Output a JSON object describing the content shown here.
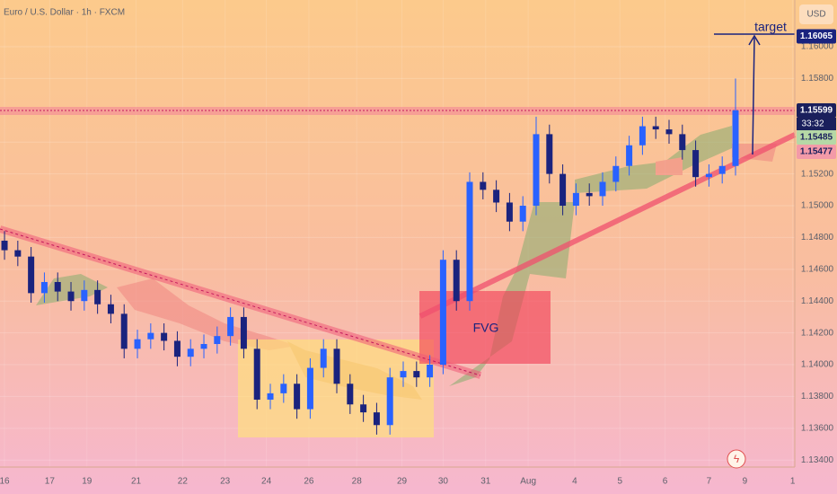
{
  "chart_data": {
    "type": "candlestick",
    "title": "Euro / U.S. Dollar · 1h · FXCM",
    "y_axis_label": "USD",
    "annotations": [
      "target",
      "FVG"
    ],
    "countdown": "33:32",
    "up_color": "#2962ff",
    "down_color": "#1a237e",
    "grid": true,
    "ylim": [
      1.13356,
      1.16294
    ],
    "yticks": [
      {
        "value": 1.134,
        "label": "1.13400"
      },
      {
        "value": 1.136,
        "label": "1.13600"
      },
      {
        "value": 1.138,
        "label": "1.13800"
      },
      {
        "value": 1.14,
        "label": "1.14000"
      },
      {
        "value": 1.142,
        "label": "1.14200"
      },
      {
        "value": 1.144,
        "label": "1.14400"
      },
      {
        "value": 1.146,
        "label": "1.14600"
      },
      {
        "value": 1.148,
        "label": "1.14800"
      },
      {
        "value": 1.15,
        "label": "1.15000"
      },
      {
        "value": 1.152,
        "label": "1.15200"
      },
      {
        "value": 1.154,
        "label": "1.15400"
      },
      {
        "value": 1.156,
        "label": "1.15600"
      },
      {
        "value": 1.158,
        "label": "1.15800"
      },
      {
        "value": 1.16,
        "label": "1.16000"
      }
    ],
    "xlim": [
      -0.34,
      59.46
    ],
    "xticks": [
      {
        "value": 0,
        "label": "16"
      },
      {
        "value": 3.4,
        "label": "17"
      },
      {
        "value": 6.2,
        "label": "19"
      },
      {
        "value": 9.9,
        "label": "21"
      },
      {
        "value": 13.4,
        "label": "22"
      },
      {
        "value": 16.6,
        "label": "23"
      },
      {
        "value": 19.7,
        "label": "24"
      },
      {
        "value": 22.9,
        "label": "26"
      },
      {
        "value": 26.5,
        "label": "28"
      },
      {
        "value": 29.9,
        "label": "29"
      },
      {
        "value": 33.0,
        "label": "30"
      },
      {
        "value": 36.2,
        "label": "31"
      },
      {
        "value": 39.4,
        "label": "Aug"
      },
      {
        "value": 42.9,
        "label": "4"
      },
      {
        "value": 46.3,
        "label": "5"
      },
      {
        "value": 49.7,
        "label": "6"
      },
      {
        "value": 53.0,
        "label": "7"
      },
      {
        "value": 55.7,
        "label": "9"
      },
      {
        "value": 59.3,
        "label": "1"
      }
    ],
    "price_labels": [
      {
        "value": 1.16065,
        "label": "1.16065",
        "color": "#1a237e",
        "text_color": "#ffffff"
      },
      {
        "value": 1.15599,
        "label": "1.15599",
        "color": "#1a1f5c",
        "text_color": "#ffffff"
      },
      {
        "value": 1.15485,
        "label": "1.15485",
        "color": "#b5d8a6",
        "text_color": "#1a1f5c"
      },
      {
        "value": 1.15477,
        "label": "1.15477",
        "color": "#f39aa8",
        "text_color": "#1a1f5c"
      }
    ],
    "ohlc": [
      [
        1.1478,
        1.1484,
        1.1466,
        1.1472
      ],
      [
        1.1472,
        1.1478,
        1.1462,
        1.1468
      ],
      [
        1.1468,
        1.1474,
        1.1439,
        1.1445
      ],
      [
        1.1445,
        1.1458,
        1.1439,
        1.1452
      ],
      [
        1.1452,
        1.1458,
        1.144,
        1.1446
      ],
      [
        1.1446,
        1.1452,
        1.1434,
        1.144
      ],
      [
        1.144,
        1.1453,
        1.1434,
        1.1447
      ],
      [
        1.1447,
        1.1453,
        1.1432,
        1.1438
      ],
      [
        1.1438,
        1.1444,
        1.1426,
        1.1432
      ],
      [
        1.1432,
        1.1438,
        1.1404,
        1.141
      ],
      [
        1.141,
        1.1422,
        1.1404,
        1.1416
      ],
      [
        1.1416,
        1.1426,
        1.141,
        1.142
      ],
      [
        1.142,
        1.1426,
        1.1409,
        1.1415
      ],
      [
        1.1415,
        1.1421,
        1.1399,
        1.1405
      ],
      [
        1.1405,
        1.1416,
        1.1399,
        1.141
      ],
      [
        1.141,
        1.1419,
        1.1404,
        1.1413
      ],
      [
        1.1413,
        1.1424,
        1.1407,
        1.1418
      ],
      [
        1.1418,
        1.1436,
        1.1412,
        1.143
      ],
      [
        1.143,
        1.1436,
        1.1404,
        1.141
      ],
      [
        1.141,
        1.1416,
        1.1372,
        1.1378
      ],
      [
        1.1378,
        1.1388,
        1.1372,
        1.1382
      ],
      [
        1.1382,
        1.1394,
        1.1376,
        1.1388
      ],
      [
        1.1388,
        1.1394,
        1.1366,
        1.1372
      ],
      [
        1.1372,
        1.1404,
        1.1366,
        1.1398
      ],
      [
        1.1398,
        1.1416,
        1.1392,
        1.141
      ],
      [
        1.141,
        1.1416,
        1.1382,
        1.1388
      ],
      [
        1.1388,
        1.1394,
        1.1369,
        1.1375
      ],
      [
        1.1375,
        1.1381,
        1.1364,
        1.137
      ],
      [
        1.137,
        1.1376,
        1.1356,
        1.1362
      ],
      [
        1.1362,
        1.1398,
        1.1356,
        1.1392
      ],
      [
        1.1392,
        1.1402,
        1.1386,
        1.1396
      ],
      [
        1.1396,
        1.1402,
        1.1386,
        1.1392
      ],
      [
        1.1392,
        1.1406,
        1.1386,
        1.14
      ],
      [
        1.14,
        1.1472,
        1.1394,
        1.1466
      ],
      [
        1.1466,
        1.1472,
        1.1434,
        1.144
      ],
      [
        1.144,
        1.1521,
        1.1434,
        1.1515
      ],
      [
        1.1515,
        1.1521,
        1.1504,
        1.151
      ],
      [
        1.151,
        1.1516,
        1.1496,
        1.1502
      ],
      [
        1.1502,
        1.1508,
        1.1484,
        1.149
      ],
      [
        1.149,
        1.1506,
        1.1484,
        1.15
      ],
      [
        1.15,
        1.1556,
        1.1494,
        1.1545
      ],
      [
        1.1545,
        1.1551,
        1.1514,
        1.152
      ],
      [
        1.152,
        1.1526,
        1.1494,
        1.15
      ],
      [
        1.15,
        1.1514,
        1.1494,
        1.1508
      ],
      [
        1.1508,
        1.1514,
        1.15,
        1.1506
      ],
      [
        1.1506,
        1.1521,
        1.15,
        1.1515
      ],
      [
        1.1515,
        1.1531,
        1.1509,
        1.1525
      ],
      [
        1.1525,
        1.1544,
        1.1519,
        1.1538
      ],
      [
        1.1538,
        1.1556,
        1.1532,
        1.155
      ],
      [
        1.155,
        1.1556,
        1.1542,
        1.1548
      ],
      [
        1.1548,
        1.1554,
        1.1539,
        1.1545
      ],
      [
        1.1545,
        1.1551,
        1.1529,
        1.1535
      ],
      [
        1.1535,
        1.1541,
        1.1512,
        1.1518
      ],
      [
        1.1518,
        1.1526,
        1.1512,
        1.152
      ],
      [
        1.152,
        1.1531,
        1.1514,
        1.1525
      ],
      [
        1.1525,
        1.158,
        1.1519,
        1.156
      ]
    ]
  }
}
